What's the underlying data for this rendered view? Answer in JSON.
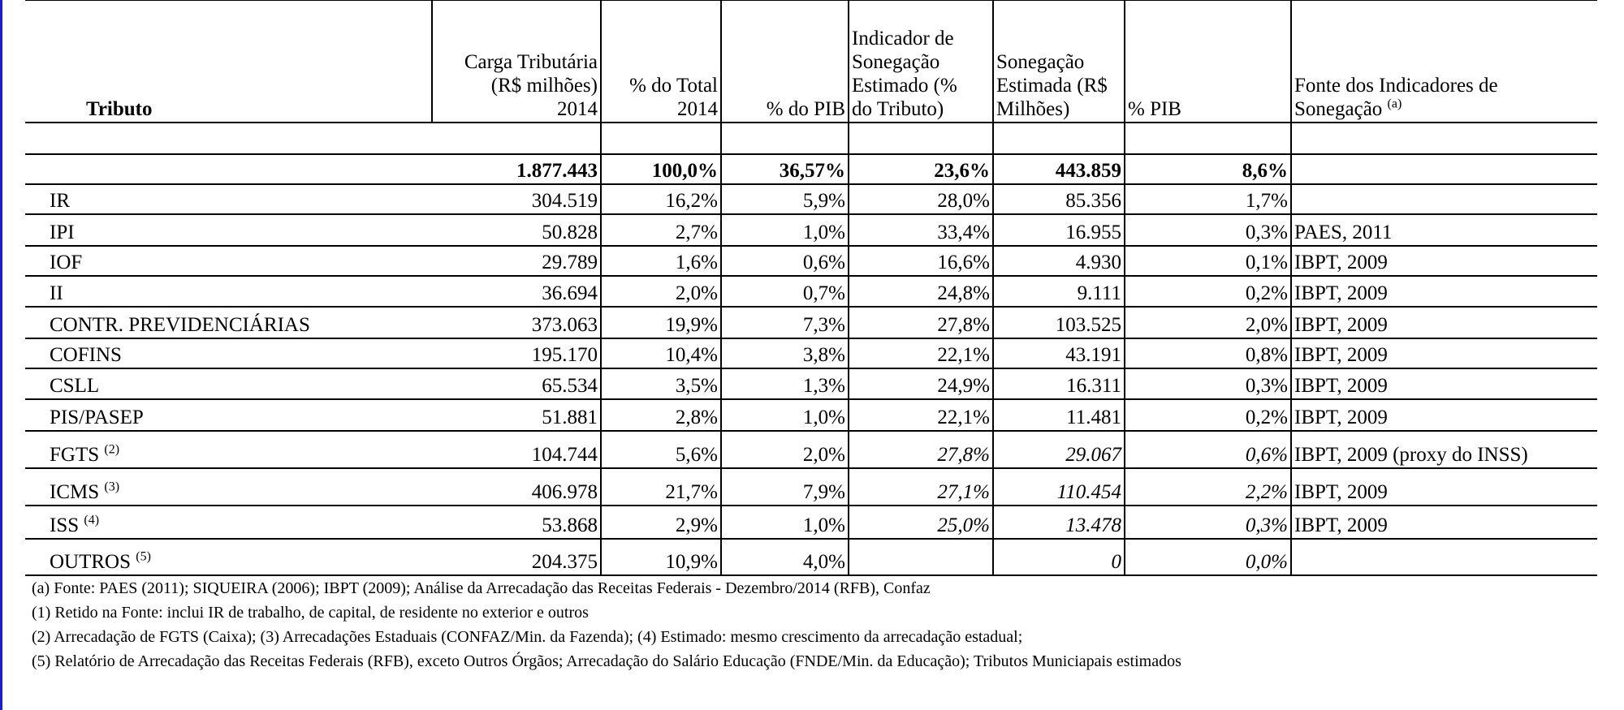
{
  "header": {
    "columns": [
      {
        "lines": [
          "Tributo"
        ]
      },
      {
        "lines": [
          "Carga Tributária",
          "(R$ milhões)",
          "2014"
        ]
      },
      {
        "lines": [
          "% do Total",
          "2014"
        ]
      },
      {
        "lines": [
          "% do PIB"
        ]
      },
      {
        "lines": [
          "Indicador de",
          "Sonegação",
          "Estimado (%",
          "do Tributo)"
        ]
      },
      {
        "lines": [
          "Sonegação",
          "Estimada (R$",
          "Milhões)"
        ]
      },
      {
        "lines": [
          "% PIB"
        ]
      },
      {
        "lines": [
          "Fonte dos Indicadores de",
          "Sonegação"
        ],
        "sup": "(a)"
      }
    ]
  },
  "table": {
    "total": {
      "values": [
        "1.877.443",
        "100,0%",
        "36,57%",
        "23,6%",
        "443.859",
        "8,6%"
      ]
    },
    "rows": [
      {
        "name": "IR",
        "values": [
          "304.519",
          "16,2%",
          "5,9%",
          "28,0%",
          "85.356",
          "1,7%"
        ]
      },
      {
        "name": "IPI",
        "values": [
          "50.828",
          "2,7%",
          "1,0%",
          "33,4%",
          "16.955",
          "0,3%"
        ],
        "source": "PAES, 2011"
      },
      {
        "name": "IOF",
        "values": [
          "29.789",
          "1,6%",
          "0,6%",
          "16,6%",
          "4.930",
          "0,1%"
        ],
        "source": "IBPT, 2009"
      },
      {
        "name": "II",
        "values": [
          "36.694",
          "2,0%",
          "0,7%",
          "24,8%",
          "9.111",
          "0,2%"
        ],
        "source": "IBPT, 2009"
      },
      {
        "name": "CONTR. PREVIDENCIÁRIAS",
        "values": [
          "373.063",
          "19,9%",
          "7,3%",
          "27,8%",
          "103.525",
          "2,0%"
        ],
        "source": "IBPT, 2009"
      },
      {
        "name": "COFINS",
        "values": [
          "195.170",
          "10,4%",
          "3,8%",
          "22,1%",
          "43.191",
          "0,8%"
        ],
        "source": "IBPT, 2009"
      },
      {
        "name": "CSLL",
        "values": [
          "65.534",
          "3,5%",
          "1,3%",
          "24,9%",
          "16.311",
          "0,3%"
        ],
        "source": "IBPT, 2009"
      },
      {
        "name": "PIS/PASEP",
        "values": [
          "51.881",
          "2,8%",
          "1,0%",
          "22,1%",
          "11.481",
          "0,2%"
        ],
        "source": "IBPT, 2009"
      },
      {
        "name": "FGTS",
        "sup": "(2)",
        "values": [
          "104.744",
          "5,6%",
          "2,0%",
          "27,8%",
          "29.067",
          "0,6%"
        ],
        "source": "IBPT, 2009 (proxy do INSS)",
        "italic": true
      },
      {
        "name": "ICMS",
        "sup": "(3)",
        "values": [
          "406.978",
          "21,7%",
          "7,9%",
          "27,1%",
          "110.454",
          "2,2%"
        ],
        "source": "IBPT, 2009",
        "italic": true
      },
      {
        "name": "ISS",
        "sup": "(4)",
        "values": [
          "53.868",
          "2,9%",
          "1,0%",
          "25,0%",
          "13.478",
          "0,3%"
        ],
        "source": "IBPT, 2009",
        "italic": true
      },
      {
        "name": "OUTROS",
        "sup": "(5)",
        "values": [
          "204.375",
          "10,9%",
          "4,0%",
          null,
          "0",
          "0,0%"
        ],
        "italic": true
      }
    ]
  },
  "footnotes": [
    "(a) Fonte: PAES (2011); SIQUEIRA (2006); IBPT (2009); Análise da Arrecadação das Receitas Federais - Dezembro/2014 (RFB), Confaz",
    "(1) Retido na Fonte: inclui IR de trabalho, de capital, de residente no exterior e outros",
    "(2) Arrecadação de FGTS (Caixa); (3) Arrecadações Estaduais (CONFAZ/Min. da Fazenda); (4) Estimado: mesmo crescimento da arrecadação estadual;",
    "(5) Relatório de Arrecadação das Receitas Federais (RFB), exceto Outros Órgãos; Arrecadação do Salário Educação (FNDE/Min. da Educação); Tributos Municiapais estimados"
  ]
}
